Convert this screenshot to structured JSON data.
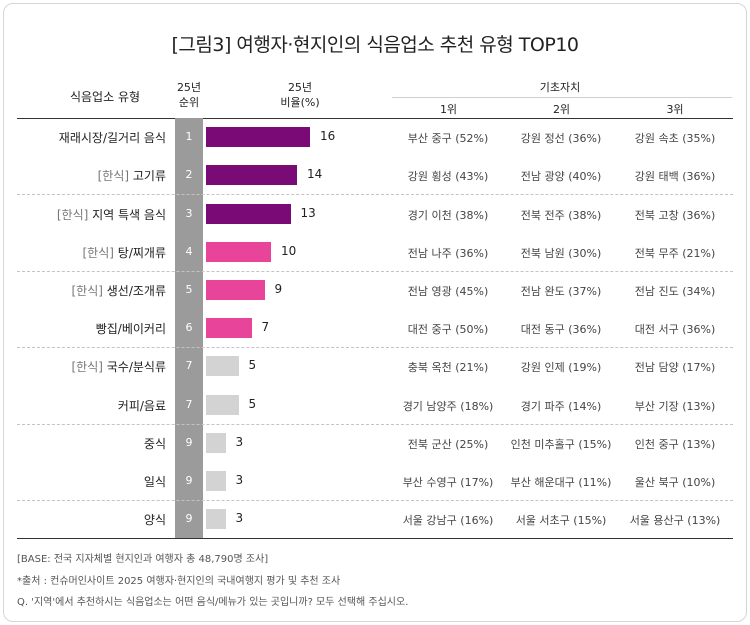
{
  "title": "[그림3] 여행자·현지인의 식음업소 추천 유형 TOP10",
  "header": {
    "category": "식음업소 유형",
    "rank_line1": "25년",
    "rank_line2": "순위",
    "ratio_line1": "25년",
    "ratio_line2": "비율(%)",
    "base_group": "기초자치",
    "col1": "1위",
    "col2": "2위",
    "col3": "3위"
  },
  "colors": {
    "purple": "#7a0a76",
    "pink": "#e8449a",
    "gray": "#d3d3d3",
    "rank_column": "#9b9b9b"
  },
  "chart_data": {
    "type": "bar",
    "categories": [
      "재래시장/길거리 음식",
      "고기류",
      "지역 특색 음식",
      "탕/찌개류",
      "생선/조개류",
      "빵집/베이커리",
      "국수/분식류",
      "커피/음료",
      "중식",
      "일식",
      "양식"
    ],
    "values": [
      16,
      14,
      13,
      10,
      9,
      7,
      5,
      5,
      3,
      3,
      3
    ]
  },
  "rows": [
    {
      "prefix": "",
      "name": "재래시장/길거리 음식",
      "rank": "1",
      "value": "16",
      "color": "purple",
      "r1": "부산 중구 (52%)",
      "r2": "강원 정선 (36%)",
      "r3": "강원 속초 (35%)"
    },
    {
      "prefix": "[한식]",
      "name": "고기류",
      "rank": "2",
      "value": "14",
      "color": "purple",
      "r1": "강원 횡성 (43%)",
      "r2": "전남 광양 (40%)",
      "r3": "강원 태백 (36%)"
    },
    {
      "prefix": "[한식]",
      "name": "지역 특색 음식",
      "rank": "3",
      "value": "13",
      "color": "purple",
      "r1": "경기 이천 (38%)",
      "r2": "전북 전주 (38%)",
      "r3": "전북 고창 (36%)"
    },
    {
      "prefix": "[한식]",
      "name": "탕/찌개류",
      "rank": "4",
      "value": "10",
      "color": "pink",
      "r1": "전남 나주 (36%)",
      "r2": "전북 남원 (30%)",
      "r3": "전북 무주 (21%)"
    },
    {
      "prefix": "[한식]",
      "name": "생선/조개류",
      "rank": "5",
      "value": "9",
      "color": "pink",
      "r1": "전남 영광 (45%)",
      "r2": "전남 완도 (37%)",
      "r3": "전남 진도 (34%)"
    },
    {
      "prefix": "",
      "name": "빵집/베이커리",
      "rank": "6",
      "value": "7",
      "color": "pink",
      "r1": "대전 중구 (50%)",
      "r2": "대전 동구 (36%)",
      "r3": "대전 서구 (36%)"
    },
    {
      "prefix": "[한식]",
      "name": "국수/분식류",
      "rank": "7",
      "value": "5",
      "color": "gray",
      "r1": "충북 옥천 (21%)",
      "r2": "강원 인제 (19%)",
      "r3": "전남 담양 (17%)"
    },
    {
      "prefix": "",
      "name": "커피/음료",
      "rank": "7",
      "value": "5",
      "color": "gray",
      "r1": "경기 남양주 (18%)",
      "r2": "경기 파주 (14%)",
      "r3": "부산 기장 (13%)"
    },
    {
      "prefix": "",
      "name": "중식",
      "rank": "9",
      "value": "3",
      "color": "gray",
      "r1": "전북 군산 (25%)",
      "r2": "인천 미추홀구 (15%)",
      "r3": "인천 중구 (13%)"
    },
    {
      "prefix": "",
      "name": "일식",
      "rank": "9",
      "value": "3",
      "color": "gray",
      "r1": "부산 수영구 (17%)",
      "r2": "부산 해운대구 (11%)",
      "r3": "울산 북구 (10%)"
    },
    {
      "prefix": "",
      "name": "양식",
      "rank": "9",
      "value": "3",
      "color": "gray",
      "r1": "서울 강남구 (16%)",
      "r2": "서울 서초구 (15%)",
      "r3": "서울 용산구 (13%)"
    }
  ],
  "notes": {
    "base": "[BASE: 전국 지자체별 현지인과 여행자 총 48,790명 조사]",
    "source": "*출처 :  컨슈머인사이트 2025 여행자·현지인의 국내여행지 평가 및 추천 조사",
    "question": "Q. '지역'에서 추천하시는 식음업소는 어떤 음식/메뉴가 있는 곳입니까? 모두 선택해 주십시오."
  }
}
